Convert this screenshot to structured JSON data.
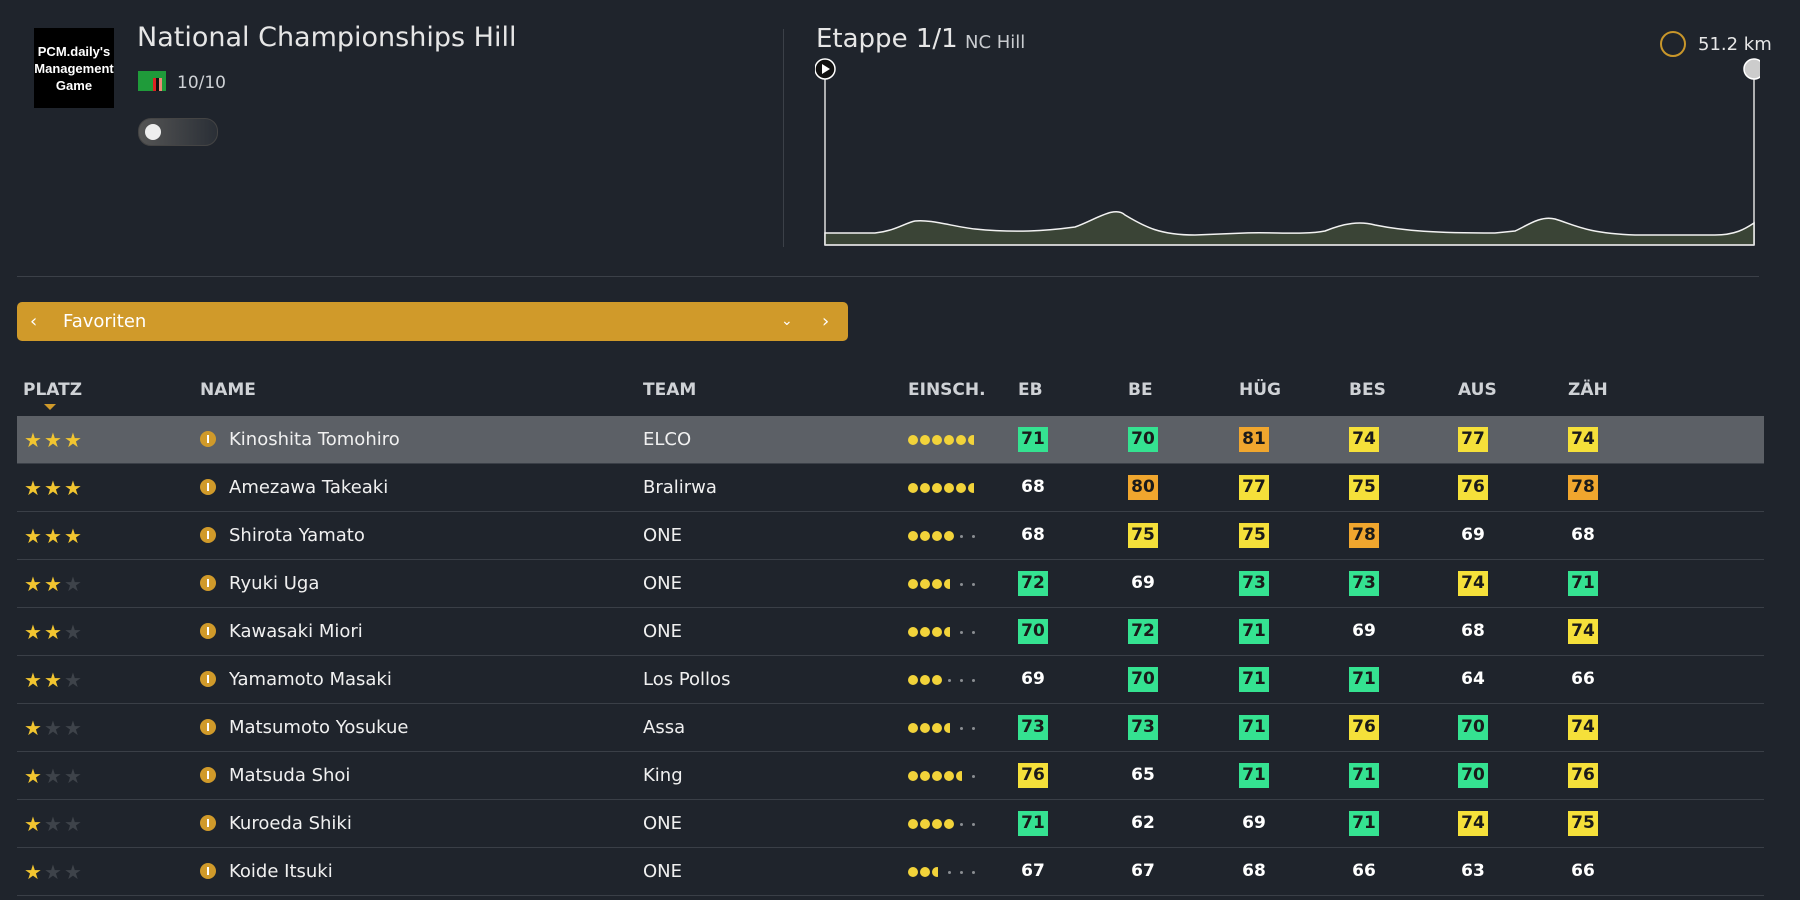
{
  "header": {
    "logo": "PCM.daily's Management Game",
    "title": "National Championships Hill",
    "rating": "10/10"
  },
  "stage": {
    "title": "Etappe 1/1",
    "name": "NC Hill",
    "distance": "51.2 km"
  },
  "filter": {
    "label": "Favoriten"
  },
  "table": {
    "columns": [
      "PLATZ",
      "NAME",
      "TEAM",
      "EINSCH.",
      "EB",
      "BE",
      "HÜG",
      "BES",
      "AUS",
      "ZÄH"
    ],
    "rows": [
      {
        "stars": 3,
        "name": "Kinoshita Tomohiro",
        "team": "ELCO",
        "einsch": 5.5,
        "stats": [
          71,
          70,
          81,
          74,
          77,
          74
        ]
      },
      {
        "stars": 3,
        "name": "Amezawa Takeaki",
        "team": "Bralirwa",
        "einsch": 5.5,
        "stats": [
          68,
          80,
          77,
          75,
          76,
          78
        ]
      },
      {
        "stars": 3,
        "name": "Shirota Yamato",
        "team": "ONE",
        "einsch": 4,
        "stats": [
          68,
          75,
          75,
          78,
          69,
          68
        ]
      },
      {
        "stars": 2,
        "name": "Ryuki Uga",
        "team": "ONE",
        "einsch": 3.5,
        "stats": [
          72,
          69,
          73,
          73,
          74,
          71
        ]
      },
      {
        "stars": 2,
        "name": "Kawasaki Miori",
        "team": "ONE",
        "einsch": 3.5,
        "stats": [
          70,
          72,
          71,
          69,
          68,
          74
        ]
      },
      {
        "stars": 2,
        "name": "Yamamoto Masaki",
        "team": "Los Pollos",
        "einsch": 3,
        "stats": [
          69,
          70,
          71,
          71,
          64,
          66
        ]
      },
      {
        "stars": 1,
        "name": "Matsumoto Yosukue",
        "team": "Assa",
        "einsch": 3.5,
        "stats": [
          73,
          73,
          71,
          76,
          70,
          74
        ]
      },
      {
        "stars": 1,
        "name": "Matsuda Shoi",
        "team": "King",
        "einsch": 4.5,
        "stats": [
          76,
          65,
          71,
          71,
          70,
          76
        ]
      },
      {
        "stars": 1,
        "name": "Kuroeda Shiki",
        "team": "ONE",
        "einsch": 4,
        "stats": [
          71,
          62,
          69,
          71,
          74,
          75
        ]
      },
      {
        "stars": 1,
        "name": "Koide Itsuki",
        "team": "ONE",
        "einsch": 2.5,
        "stats": [
          67,
          67,
          68,
          66,
          63,
          66
        ]
      }
    ]
  }
}
